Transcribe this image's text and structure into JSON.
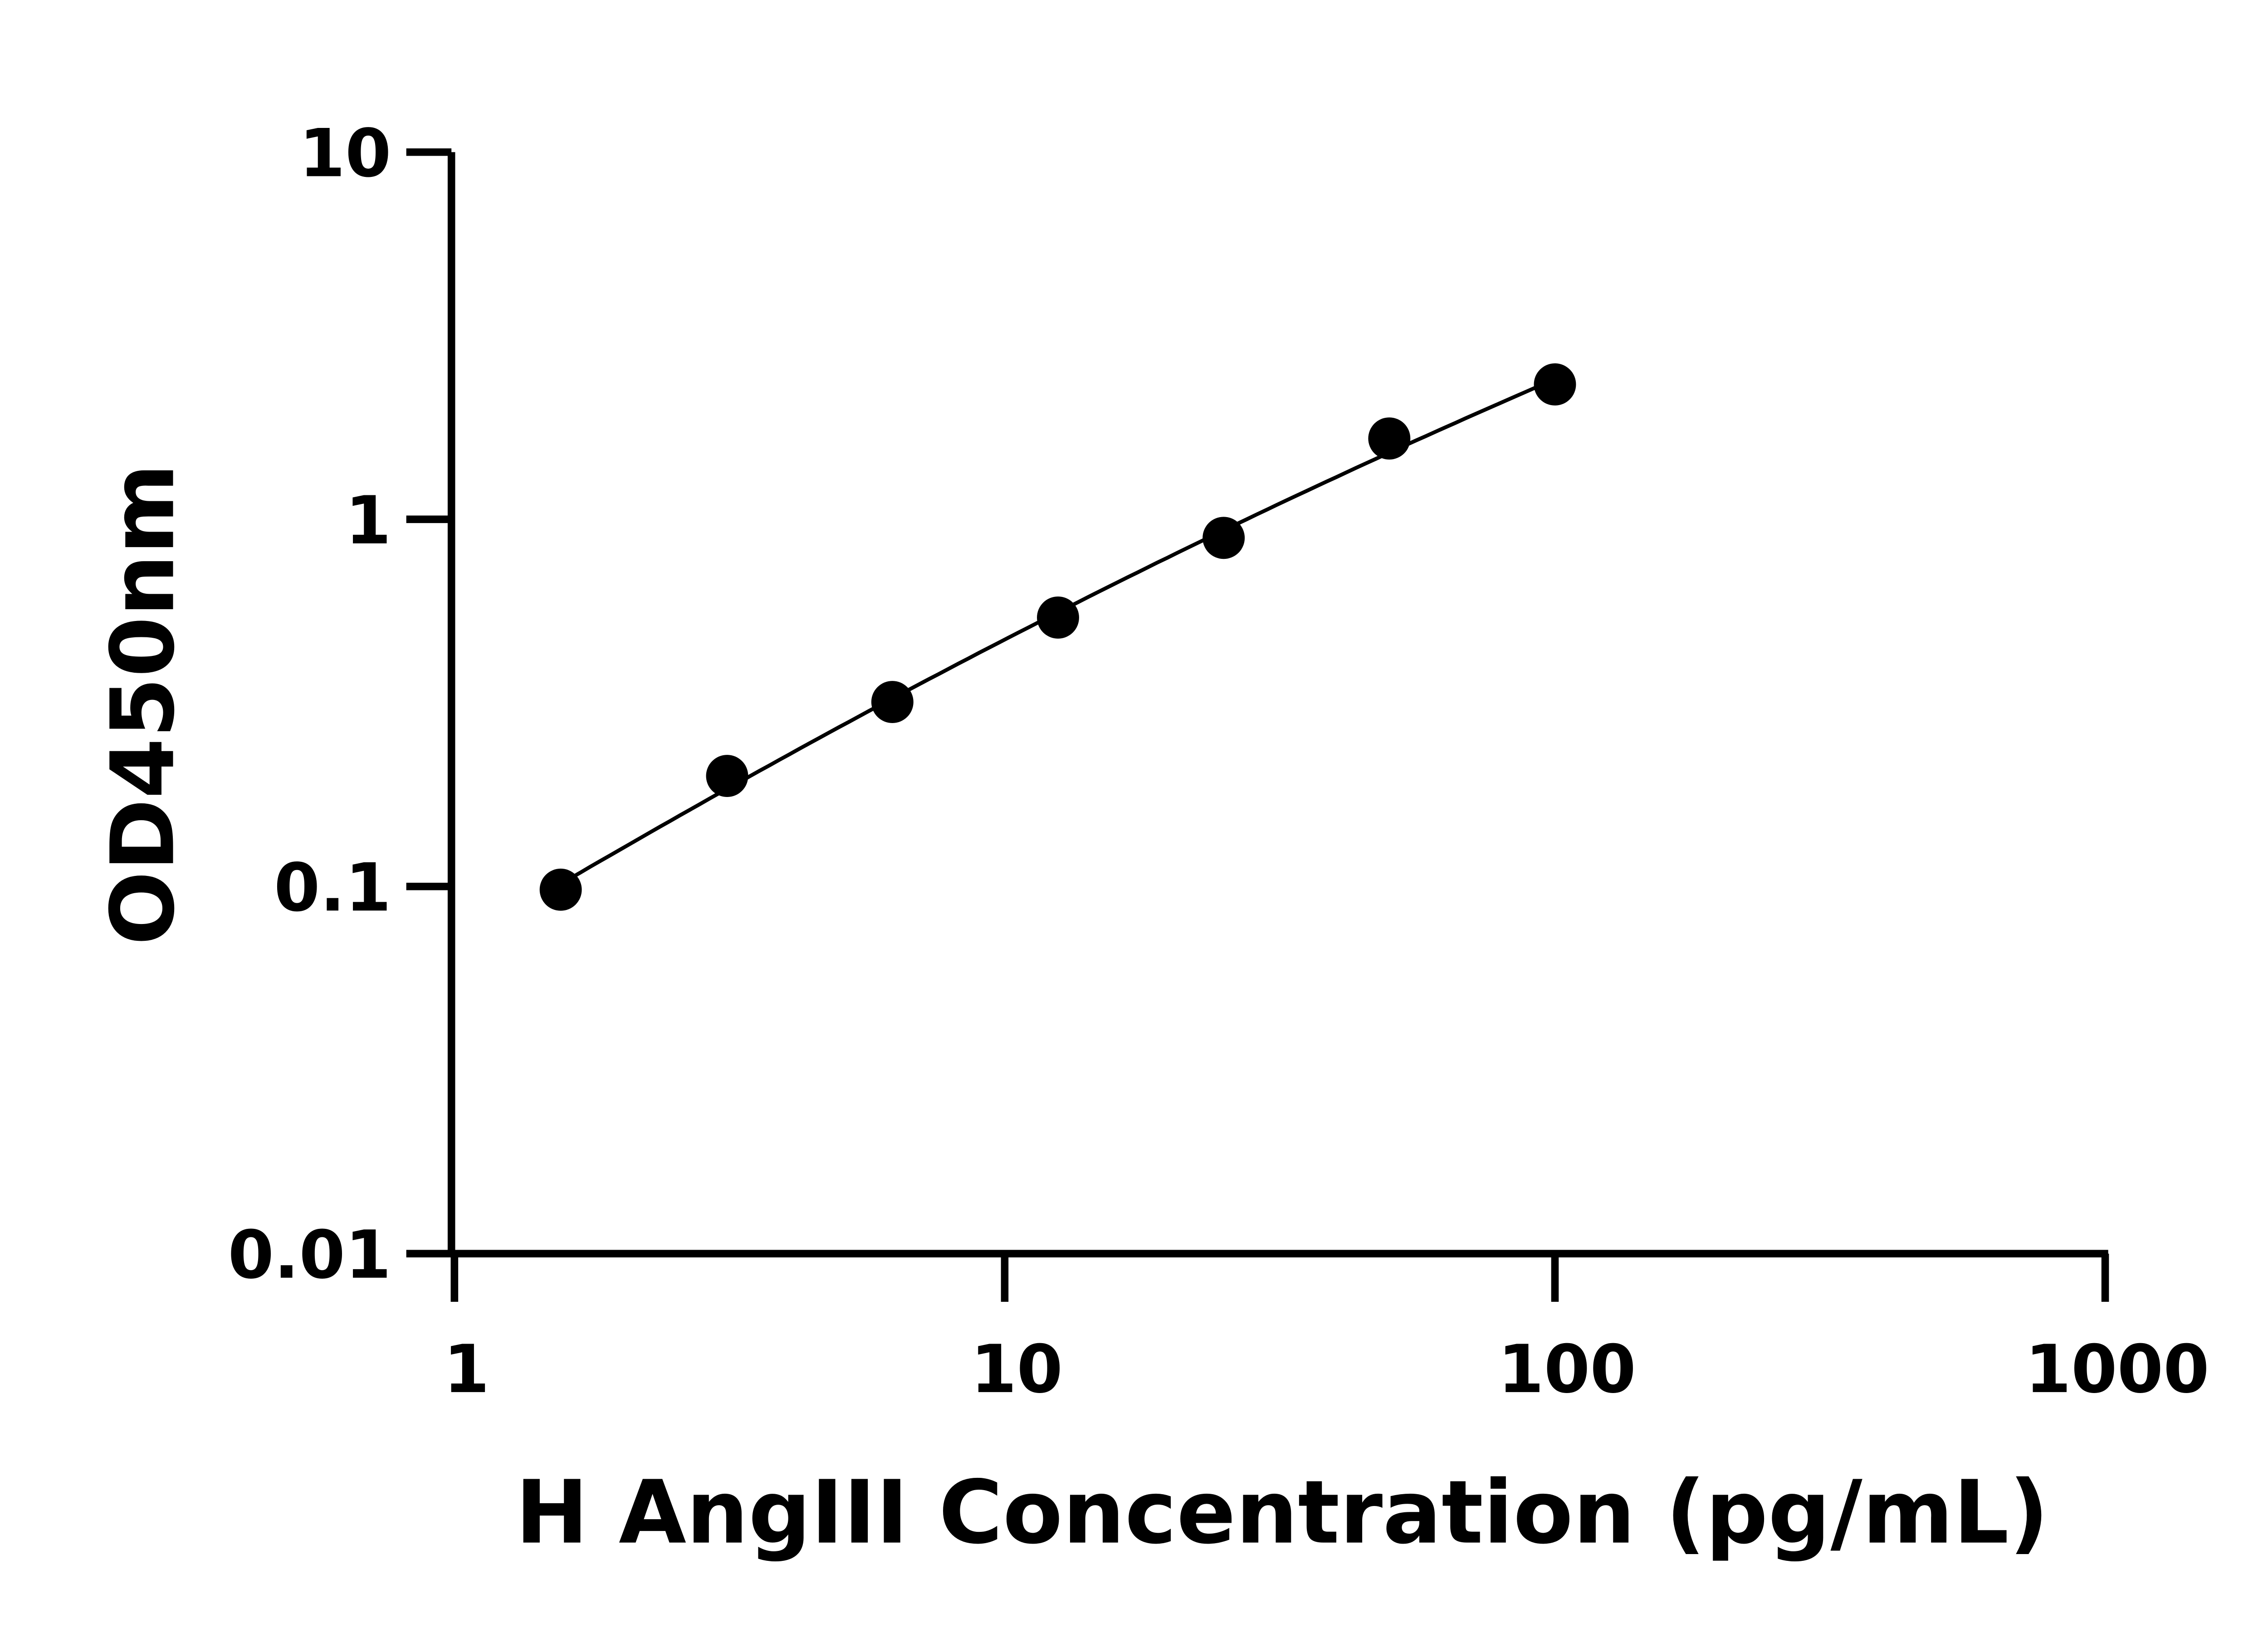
{
  "chart_data": {
    "type": "scatter",
    "xlabel": "H AngIII Concentration (pg/mL)",
    "ylabel": "OD450nm",
    "xscale": "log",
    "yscale": "log",
    "xlim": [
      1,
      1000
    ],
    "ylim": [
      0.01,
      10
    ],
    "xticks": [
      "1",
      "10",
      "100",
      "1000"
    ],
    "yticks": [
      "0.01",
      "0.1",
      "1",
      "10"
    ],
    "grid": false,
    "fit_curve": true,
    "marker_color": "#000000",
    "x": [
      1.56,
      3.13,
      6.25,
      12.5,
      25,
      50,
      100
    ],
    "y": [
      0.098,
      0.2,
      0.318,
      0.54,
      0.89,
      1.66,
      2.33
    ]
  }
}
